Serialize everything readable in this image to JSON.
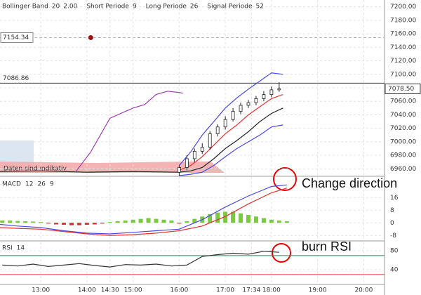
{
  "header": [
    {
      "name": "Bollinger Band",
      "params": [
        "20",
        "2.00"
      ]
    },
    {
      "name": "Short Periode",
      "params": [
        "9"
      ]
    },
    {
      "name": "Long Periode",
      "params": [
        "26"
      ]
    },
    {
      "name": "Signal Periode",
      "params": [
        "52"
      ]
    }
  ],
  "chart_data": [
    {
      "type": "candlestick",
      "x": [
        "16:00",
        "16:10",
        "16:20",
        "16:30",
        "16:40",
        "16:50",
        "17:00",
        "17:10",
        "17:20",
        "17:30",
        "17:40",
        "17:50",
        "18:00",
        "18:10"
      ],
      "open": [
        6955,
        6962,
        6975,
        6986,
        6992,
        7012,
        7022,
        7033,
        7045,
        7054,
        7058,
        7064,
        7070,
        7077
      ],
      "high": [
        6966,
        6980,
        6990,
        6998,
        7016,
        7026,
        7038,
        7050,
        7058,
        7062,
        7068,
        7075,
        7082,
        7088
      ],
      "low": [
        6950,
        6958,
        6970,
        6982,
        6988,
        7008,
        7018,
        7030,
        7041,
        7050,
        7054,
        7060,
        7066,
        7074
      ],
      "close": [
        6962,
        6975,
        6986,
        6992,
        7012,
        7022,
        7033,
        7045,
        7054,
        7058,
        7064,
        7070,
        7077,
        7078.5
      ],
      "up_color": "#ffffff",
      "down_color": "#222222",
      "series": [
        {
          "color": "#222222",
          "x": [
            "12:07",
            "13:00",
            "14:00",
            "15:00",
            "16:00"
          ],
          "values": [
            6956,
            6957,
            6955,
            6956,
            6955
          ]
        },
        {
          "color": "#9b3fae",
          "x": [
            "13:45",
            "14:05",
            "14:30",
            "15:00",
            "15:15",
            "15:30",
            "15:45",
            "16:00",
            "16:05"
          ],
          "values": [
            6955,
            6985,
            7035,
            7050,
            7055,
            7070,
            7075,
            7073,
            7072
          ]
        },
        {
          "color": "#4a4ae6",
          "x": [
            "16:00",
            "16:15",
            "16:30",
            "16:45",
            "17:00",
            "17:15",
            "17:30",
            "17:45",
            "18:00",
            "18:15"
          ],
          "values": [
            6965,
            6985,
            7010,
            7030,
            7050,
            7065,
            7078,
            7090,
            7102,
            7100
          ]
        },
        {
          "color": "#e53030",
          "x": [
            "16:00",
            "16:15",
            "16:30",
            "16:45",
            "17:00",
            "17:15",
            "17:30",
            "17:45",
            "18:00",
            "18:15"
          ],
          "values": [
            6958,
            6965,
            6978,
            6995,
            7012,
            7025,
            7040,
            7052,
            7064,
            7070
          ]
        },
        {
          "color": "#222222",
          "x": [
            "16:00",
            "16:15",
            "16:30",
            "16:45",
            "17:00",
            "17:15",
            "17:30",
            "17:45",
            "18:00",
            "18:15"
          ],
          "values": [
            6955,
            6957,
            6962,
            6975,
            6990,
            7002,
            7015,
            7030,
            7042,
            7050
          ]
        },
        {
          "color": "#4a4ae6",
          "x": [
            "16:00",
            "16:15",
            "16:30",
            "16:45",
            "17:00",
            "17:15",
            "17:30",
            "17:45",
            "18:00",
            "18:15"
          ],
          "values": [
            6950,
            6952,
            6955,
            6965,
            6978,
            6990,
            7000,
            7010,
            7022,
            7025
          ]
        }
      ],
      "hlines": [
        {
          "value": 7086.86,
          "label": "7086.86",
          "dashed": false
        },
        {
          "value": 7154.34,
          "label": "7154.34",
          "dashed": true
        }
      ],
      "marker": {
        "x": "14:05",
        "value": 7154.34,
        "color": "#a01010"
      },
      "last_price": {
        "value": 7078.5,
        "label": "7078.50"
      },
      "note": "Daten sind indikativ",
      "ylim": [
        6950,
        7210
      ],
      "yticks": [
        {
          "value": 6960,
          "label": "6960.00"
        },
        {
          "value": 6980,
          "label": "6980.00"
        },
        {
          "value": 7000,
          "label": "7000.00"
        },
        {
          "value": 7020,
          "label": "7020.00"
        },
        {
          "value": 7040,
          "label": "7040.00"
        },
        {
          "value": 7060,
          "label": "7060.00"
        },
        {
          "value": 7080,
          "label": "7080.00"
        },
        {
          "value": 7100,
          "label": "7100.00"
        },
        {
          "value": 7120,
          "label": "7120.00"
        },
        {
          "value": 7140,
          "label": "7140.00"
        },
        {
          "value": 7160,
          "label": "7160.00"
        },
        {
          "value": 7180,
          "label": "7180.00"
        },
        {
          "value": 7200,
          "label": "7200.00"
        }
      ],
      "grid": true
    },
    {
      "type": "macd",
      "title": "MACD",
      "params": [
        "12",
        "26",
        "9"
      ],
      "histogram": {
        "pos_color": "#7ac943",
        "neg_color": "#c0392b",
        "x": [
          "12:10",
          "12:20",
          "12:30",
          "12:40",
          "12:50",
          "13:00",
          "13:10",
          "13:20",
          "13:30",
          "13:40",
          "13:50",
          "14:00",
          "14:10",
          "14:20",
          "14:30",
          "14:40",
          "14:50",
          "15:00",
          "15:10",
          "15:20",
          "15:30",
          "15:40",
          "15:50",
          "16:00",
          "16:10",
          "16:20",
          "16:30",
          "16:40",
          "16:50",
          "17:00",
          "17:10",
          "17:20",
          "17:30",
          "17:40",
          "17:50",
          "18:00",
          "18:10",
          "18:20"
        ],
        "values": [
          1.5,
          1.5,
          1.2,
          1,
          0.8,
          0.5,
          -0.5,
          -1,
          -1.2,
          -1.5,
          -1.5,
          -1.2,
          -1,
          -0.5,
          0.5,
          1,
          1.5,
          2,
          2.5,
          3,
          2.5,
          2,
          1.5,
          -0.5,
          1,
          2.5,
          4,
          5.5,
          6.5,
          7,
          7,
          6,
          5,
          4,
          3,
          2,
          1.5,
          1
        ]
      },
      "series": [
        {
          "color": "#4a4ae6",
          "x": [
            "12:07",
            "12:30",
            "13:00",
            "13:30",
            "14:00",
            "14:30",
            "15:00",
            "15:30",
            "16:00",
            "16:30",
            "17:00",
            "17:30",
            "18:00",
            "18:20"
          ],
          "values": [
            -1,
            -2,
            -3,
            -5,
            -6.5,
            -7,
            -6,
            -5,
            -4,
            2,
            10,
            17,
            23,
            24
          ]
        },
        {
          "color": "#e53030",
          "x": [
            "12:07",
            "12:30",
            "13:00",
            "13:30",
            "14:00",
            "14:30",
            "15:00",
            "15:30",
            "16:00",
            "16:30",
            "17:00",
            "17:30",
            "18:00",
            "18:20"
          ],
          "values": [
            -3,
            -3.5,
            -4,
            -5.5,
            -7,
            -8,
            -7.5,
            -6.5,
            -5,
            -2,
            4,
            12,
            19,
            22
          ]
        }
      ],
      "annotation": "Change direction",
      "ylim": [
        -11,
        29
      ],
      "yticks": [
        -8,
        0,
        8,
        16
      ],
      "grid": true
    },
    {
      "type": "rsi",
      "title": "RSI",
      "params": [
        "14"
      ],
      "series": [
        {
          "color": "#333333",
          "x": [
            "12:10",
            "12:30",
            "12:50",
            "13:10",
            "13:30",
            "13:50",
            "14:10",
            "14:30",
            "14:50",
            "15:10",
            "15:30",
            "15:50",
            "16:10",
            "16:30",
            "16:50",
            "17:10",
            "17:30",
            "17:50",
            "18:10"
          ],
          "values": [
            50,
            48,
            52,
            47,
            50,
            53,
            49,
            46,
            51,
            50,
            52,
            48,
            50,
            68,
            72,
            75,
            73,
            79,
            77
          ]
        }
      ],
      "hlines": [
        {
          "value": 70,
          "color": "#2e8b57"
        },
        {
          "value": 30,
          "color": "#e53030"
        }
      ],
      "annotation": "burn RSI",
      "ylim": [
        9,
        98
      ],
      "yticks": [
        40,
        80
      ],
      "xlim": [
        "12:07",
        "20:27"
      ],
      "xticks": [
        "13:00",
        "14:00",
        "14:30",
        "15:00",
        "16:00",
        "17:00",
        "17:34",
        "18:00",
        "19:00",
        "20:00"
      ],
      "grid": true
    }
  ]
}
